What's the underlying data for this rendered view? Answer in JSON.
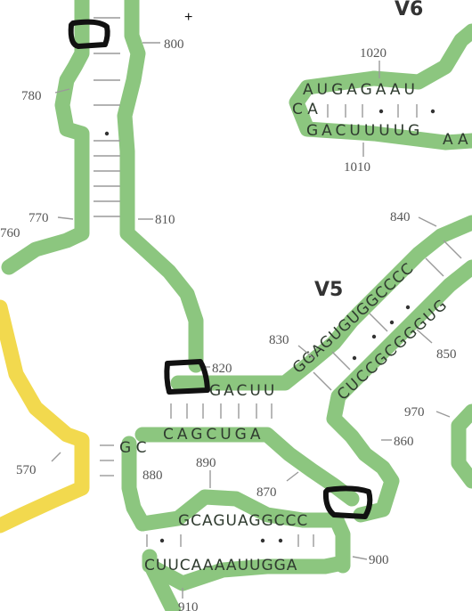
{
  "regions": {
    "v5": "V5",
    "v6": "V6"
  },
  "position_labels": {
    "p570": "570",
    "p760": "760",
    "p770": "770",
    "p780": "780",
    "p800": "800",
    "p810": "810",
    "p820": "820",
    "p830": "830",
    "p840": "840",
    "p850": "850",
    "p860": "860",
    "p870": "870",
    "p880": "880",
    "p890": "890",
    "p900": "900",
    "p910": "910",
    "p970": "970",
    "p1010": "1010",
    "p1020": "1020"
  },
  "sequences": {
    "v6_top": "AUGAGAAU",
    "v6_bottom": "GACUUUUG",
    "v6_loop_left": "C A",
    "v6_tail": "A A",
    "stem820_top": "GACUU",
    "stem820_bottom": "CAGCUGA",
    "left_junction": "G C",
    "right_830_strand": "GGAGUGUGGCCCC",
    "right_850_strand": "CUCCGCGGGUG",
    "lower_890": "GCAGUAGGCCC",
    "lower_900": "CUUCAAAAUUGGA"
  },
  "colors": {
    "green": "#8cc67f",
    "yellow": "#f2d94e",
    "marker": "#111111"
  },
  "plus_mark": "+"
}
